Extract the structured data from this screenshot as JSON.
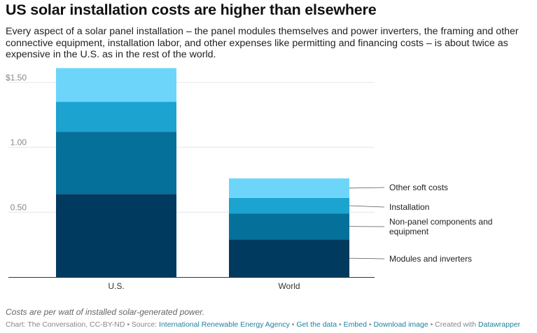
{
  "title": "US solar installation costs are higher than elsewhere",
  "subtitle": "Every aspect of a solar panel installation – the panel modules themselves and power inverters, the framing and other connective equipment, installation labor, and other expenses like permitting and financing costs – is about twice as expensive in the U.S. as in the rest of the world.",
  "note": "Costs are per watt of installed solar-generated power.",
  "footer": {
    "chart_credit": "Chart: The Conversation, CC-BY-ND",
    "source_prefix": " • Source: ",
    "source_link": "International Renewable Energy Agency",
    "sep1": " • ",
    "get_data": "Get the data",
    "sep2": " • ",
    "embed": "Embed",
    "sep3": " • ",
    "download": "Download image",
    "created_prefix": " • Created with ",
    "datawrapper": "Datawrapper"
  },
  "colors": {
    "modules_and_inverters": "#003a5e",
    "non_panel_components": "#05709a",
    "installation": "#1ca3cf",
    "other_soft_costs": "#6dd5f9",
    "gridline": "#e6e6e6",
    "baseline": "#333333"
  },
  "chart_data": {
    "type": "bar",
    "stacked": true,
    "categories": [
      "U.S.",
      "World"
    ],
    "series": [
      {
        "name": "Modules and inverters",
        "values": [
          0.64,
          0.29
        ],
        "color": "#003a5e"
      },
      {
        "name": "Non-panel components and equipment",
        "values": [
          0.48,
          0.2
        ],
        "color": "#05709a"
      },
      {
        "name": "Installation",
        "values": [
          0.23,
          0.12
        ],
        "color": "#1ca3cf"
      },
      {
        "name": "Other soft costs",
        "values": [
          0.26,
          0.15
        ],
        "color": "#6dd5f9"
      }
    ],
    "yticks": [
      0.5,
      1.0,
      1.5
    ],
    "ytick_labels": [
      "0.50",
      "1.00",
      "$1.50"
    ],
    "ylim": [
      0,
      1.5
    ],
    "grid": true,
    "legend": "right of last bar",
    "title": "US solar installation costs are higher than elsewhere",
    "xlabel": "",
    "ylabel": ""
  }
}
